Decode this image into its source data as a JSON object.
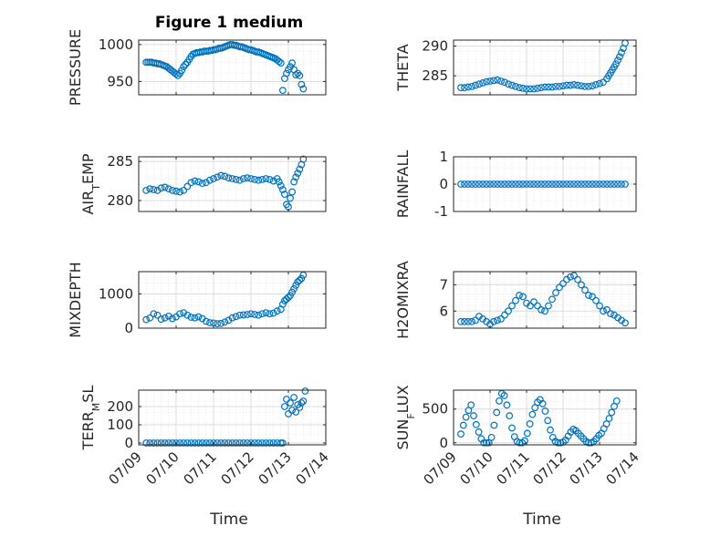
{
  "figure": {
    "title": "Figure 1 medium",
    "xlabel": "Time",
    "x_ticks": [
      "07/09",
      "07/10",
      "07/11",
      "07/12",
      "07/13",
      "07/14"
    ]
  },
  "style": {
    "marker_color": "#0072BD",
    "grid_color": "#d9d9d9",
    "axis_color": "#262626"
  },
  "chart_data": [
    {
      "type": "scatter",
      "title": "Figure 1 medium",
      "ylabel": "PRESSURE",
      "xlim": [
        0,
        5
      ],
      "ylim": [
        932,
        1006
      ],
      "yticks": [
        950,
        1000
      ],
      "x": [
        0.2,
        0.25,
        0.3,
        0.35,
        0.4,
        0.45,
        0.5,
        0.55,
        0.6,
        0.65,
        0.7,
        0.75,
        0.8,
        0.85,
        0.9,
        0.95,
        1.0,
        1.05,
        1.1,
        1.15,
        1.2,
        1.25,
        1.3,
        1.35,
        1.4,
        1.45,
        1.5,
        1.55,
        1.6,
        1.65,
        1.7,
        1.75,
        1.8,
        1.85,
        1.9,
        1.95,
        2.0,
        2.05,
        2.1,
        2.15,
        2.2,
        2.25,
        2.3,
        2.35,
        2.4,
        2.45,
        2.5,
        2.55,
        2.6,
        2.65,
        2.7,
        2.75,
        2.8,
        2.85,
        2.9,
        2.95,
        3.0,
        3.05,
        3.1,
        3.15,
        3.2,
        3.25,
        3.3,
        3.35,
        3.4,
        3.45,
        3.5,
        3.55,
        3.6,
        3.65,
        3.7,
        3.75,
        3.8,
        3.85,
        3.9,
        3.95,
        4.0,
        4.05,
        4.1,
        4.15,
        4.2,
        4.25,
        4.3,
        4.35,
        4.4
      ],
      "y": [
        976,
        976,
        976,
        976,
        975,
        975,
        974,
        974,
        973,
        972,
        971,
        970,
        968,
        966,
        964,
        962,
        960,
        958,
        961,
        965,
        970,
        973,
        976,
        980,
        984,
        987,
        988,
        989,
        989,
        990,
        990,
        991,
        991,
        991,
        992,
        992,
        993,
        993,
        994,
        995,
        995,
        996,
        997,
        998,
        999,
        1000,
        1000,
        999,
        999,
        998,
        997,
        997,
        996,
        995,
        994,
        993,
        993,
        992,
        991,
        990,
        990,
        989,
        988,
        987,
        986,
        985,
        984,
        983,
        982,
        981,
        979,
        977,
        975,
        938,
        954,
        961,
        966,
        970,
        975,
        966,
        959,
        961,
        958,
        946,
        940
      ],
      "series": [
        {
          "name": "",
          "values": []
        }
      ]
    },
    {
      "type": "scatter",
      "ylabel": "THETA",
      "xlim": [
        0,
        5
      ],
      "ylim": [
        281.8,
        291
      ],
      "yticks": [
        285,
        290
      ],
      "x": [
        0.2,
        0.3,
        0.4,
        0.5,
        0.6,
        0.7,
        0.8,
        0.9,
        1.0,
        1.1,
        1.2,
        1.3,
        1.4,
        1.5,
        1.6,
        1.7,
        1.8,
        1.9,
        2.0,
        2.1,
        2.2,
        2.3,
        2.4,
        2.5,
        2.6,
        2.7,
        2.8,
        2.9,
        3.0,
        3.1,
        3.2,
        3.3,
        3.4,
        3.5,
        3.6,
        3.7,
        3.8,
        3.9,
        4.0,
        4.1,
        4.2,
        4.25,
        4.3,
        4.35,
        4.4,
        4.45,
        4.5,
        4.55,
        4.6,
        4.65,
        4.7
      ],
      "y": [
        283,
        283,
        283.1,
        283.2,
        283.4,
        283.6,
        283.8,
        284,
        284.1,
        284.2,
        284.3,
        284.1,
        283.9,
        283.6,
        283.4,
        283.2,
        283,
        282.9,
        282.8,
        282.8,
        282.8,
        282.9,
        283,
        283.1,
        283.1,
        283.1,
        283.2,
        283.2,
        283.3,
        283.4,
        283.4,
        283.5,
        283.4,
        283.3,
        283.2,
        283.2,
        283.3,
        283.5,
        283.7,
        283.9,
        284.5,
        285,
        285.5,
        286,
        286.5,
        287,
        287.6,
        288.2,
        288.9,
        289.6,
        290.5
      ]
    },
    {
      "type": "scatter",
      "ylabel": "AIR_TEMP",
      "xlim": [
        0,
        5
      ],
      "ylim": [
        278.6,
        285.6
      ],
      "yticks": [
        280,
        285
      ],
      "x": [
        0.2,
        0.3,
        0.4,
        0.5,
        0.6,
        0.7,
        0.8,
        0.9,
        1.0,
        1.1,
        1.2,
        1.3,
        1.4,
        1.5,
        1.6,
        1.7,
        1.8,
        1.9,
        2.0,
        2.1,
        2.2,
        2.3,
        2.4,
        2.5,
        2.6,
        2.7,
        2.8,
        2.9,
        3.0,
        3.1,
        3.2,
        3.3,
        3.4,
        3.5,
        3.6,
        3.7,
        3.75,
        3.8,
        3.85,
        3.9,
        3.95,
        4.0,
        4.05,
        4.1,
        4.15,
        4.2,
        4.25,
        4.3,
        4.35,
        4.4
      ],
      "y": [
        281.3,
        281.5,
        281.4,
        281.3,
        281.6,
        281.7,
        281.5,
        281.3,
        281.2,
        281.1,
        281.3,
        281.8,
        282.3,
        282.5,
        282.4,
        282.2,
        282.3,
        282.6,
        282.8,
        283,
        283.2,
        283.1,
        282.9,
        282.8,
        282.7,
        282.6,
        282.8,
        282.9,
        282.8,
        282.7,
        282.6,
        282.7,
        282.8,
        282.7,
        282.5,
        282.8,
        282.4,
        281.9,
        281.4,
        280.8,
        279.5,
        279.2,
        280.3,
        281.1,
        282.4,
        283,
        283.5,
        284,
        284.6,
        285.3
      ]
    },
    {
      "type": "scatter",
      "ylabel": "RAINFALL",
      "xlim": [
        0,
        5
      ],
      "ylim": [
        -1,
        1
      ],
      "yticks": [
        -1,
        0,
        1
      ],
      "x": [
        0.2,
        0.3,
        0.4,
        0.5,
        0.6,
        0.7,
        0.8,
        0.9,
        1.0,
        1.1,
        1.2,
        1.3,
        1.4,
        1.5,
        1.6,
        1.7,
        1.8,
        1.9,
        2.0,
        2.1,
        2.2,
        2.3,
        2.4,
        2.5,
        2.6,
        2.7,
        2.8,
        2.9,
        3.0,
        3.1,
        3.2,
        3.3,
        3.4,
        3.5,
        3.6,
        3.7,
        3.8,
        3.9,
        4.0,
        4.1,
        4.2,
        4.3,
        4.4,
        4.5,
        4.6,
        4.7
      ],
      "y": [
        0,
        0,
        0,
        0,
        0,
        0,
        0,
        0,
        0,
        0,
        0,
        0,
        0,
        0,
        0,
        0,
        0,
        0,
        0,
        0,
        0,
        0,
        0,
        0,
        0,
        0,
        0,
        0,
        0,
        0,
        0,
        0,
        0,
        0,
        0,
        0,
        0,
        0,
        0,
        0,
        0,
        0,
        0,
        0,
        0,
        0
      ]
    },
    {
      "type": "scatter",
      "ylabel": "MIXDEPTH",
      "xlim": [
        0,
        5
      ],
      "ylim": [
        0,
        1650
      ],
      "yticks": [
        0,
        1000
      ],
      "x": [
        0.2,
        0.3,
        0.4,
        0.5,
        0.6,
        0.7,
        0.8,
        0.9,
        1.0,
        1.1,
        1.2,
        1.3,
        1.4,
        1.5,
        1.6,
        1.7,
        1.8,
        1.9,
        2.0,
        2.1,
        2.2,
        2.3,
        2.4,
        2.5,
        2.6,
        2.7,
        2.8,
        2.9,
        3.0,
        3.1,
        3.2,
        3.3,
        3.4,
        3.5,
        3.6,
        3.7,
        3.8,
        3.85,
        3.9,
        3.95,
        4.0,
        4.05,
        4.1,
        4.15,
        4.2,
        4.25,
        4.3,
        4.35,
        4.4
      ],
      "y": [
        250,
        300,
        420,
        380,
        260,
        300,
        350,
        280,
        330,
        420,
        450,
        380,
        320,
        300,
        330,
        280,
        200,
        160,
        150,
        130,
        140,
        180,
        230,
        300,
        340,
        380,
        390,
        400,
        420,
        400,
        380,
        420,
        450,
        420,
        440,
        500,
        550,
        700,
        800,
        850,
        900,
        950,
        1050,
        1150,
        1250,
        1350,
        1400,
        1450,
        1550
      ]
    },
    {
      "type": "scatter",
      "ylabel": "H2OMIXRA",
      "xlim": [
        0,
        5
      ],
      "ylim": [
        5.35,
        7.5
      ],
      "yticks": [
        6,
        7
      ],
      "x": [
        0.2,
        0.3,
        0.4,
        0.5,
        0.6,
        0.7,
        0.8,
        0.9,
        1.0,
        1.1,
        1.2,
        1.3,
        1.4,
        1.5,
        1.6,
        1.7,
        1.8,
        1.9,
        2.0,
        2.1,
        2.2,
        2.3,
        2.4,
        2.5,
        2.6,
        2.7,
        2.8,
        2.9,
        3.0,
        3.1,
        3.2,
        3.3,
        3.4,
        3.5,
        3.6,
        3.7,
        3.8,
        3.9,
        4.0,
        4.1,
        4.2,
        4.3,
        4.4,
        4.5,
        4.6,
        4.7
      ],
      "y": [
        5.6,
        5.6,
        5.6,
        5.6,
        5.65,
        5.8,
        5.7,
        5.6,
        5.5,
        5.6,
        5.65,
        5.7,
        5.85,
        6.0,
        6.2,
        6.4,
        6.6,
        6.55,
        6.3,
        6.2,
        6.35,
        6.2,
        6.05,
        6.0,
        6.2,
        6.45,
        6.7,
        6.9,
        7.05,
        7.2,
        7.3,
        7.35,
        7.2,
        7.0,
        6.8,
        6.6,
        6.55,
        6.4,
        6.2,
        6.0,
        6.05,
        5.9,
        5.85,
        5.75,
        5.65,
        5.55
      ]
    },
    {
      "type": "scatter",
      "ylabel": "TERR_MSL",
      "xlim": [
        0,
        5
      ],
      "ylim": [
        -10,
        290
      ],
      "yticks": [
        0,
        100,
        200
      ],
      "x": [
        0.2,
        0.3,
        0.4,
        0.5,
        0.6,
        0.7,
        0.8,
        0.9,
        1.0,
        1.1,
        1.2,
        1.3,
        1.4,
        1.5,
        1.6,
        1.7,
        1.8,
        1.9,
        2.0,
        2.1,
        2.2,
        2.3,
        2.4,
        2.5,
        2.6,
        2.7,
        2.8,
        2.9,
        3.0,
        3.1,
        3.2,
        3.3,
        3.4,
        3.5,
        3.6,
        3.7,
        3.8,
        3.85,
        3.9,
        3.95,
        4.0,
        4.05,
        4.1,
        4.15,
        4.2,
        4.25,
        4.3,
        4.35,
        4.4,
        4.45
      ],
      "y": [
        0,
        0,
        0,
        0,
        0,
        0,
        0,
        0,
        0,
        0,
        0,
        0,
        0,
        0,
        0,
        0,
        0,
        0,
        0,
        0,
        0,
        0,
        0,
        0,
        0,
        0,
        0,
        0,
        0,
        0,
        0,
        0,
        0,
        0,
        0,
        0,
        0,
        0,
        200,
        240,
        160,
        220,
        180,
        250,
        170,
        210,
        195,
        220,
        230,
        285
      ]
    },
    {
      "type": "scatter",
      "ylabel": "SUN_FLUX",
      "xlim": [
        0,
        5
      ],
      "ylim": [
        -30,
        780
      ],
      "yticks": [
        0,
        500
      ],
      "x": [
        0.2,
        0.27,
        0.34,
        0.41,
        0.48,
        0.55,
        0.62,
        0.69,
        0.76,
        0.83,
        0.9,
        0.97,
        1.04,
        1.11,
        1.18,
        1.25,
        1.32,
        1.39,
        1.46,
        1.53,
        1.6,
        1.67,
        1.74,
        1.81,
        1.88,
        1.95,
        2.02,
        2.09,
        2.16,
        2.23,
        2.3,
        2.37,
        2.44,
        2.51,
        2.58,
        2.65,
        2.72,
        2.79,
        2.86,
        2.93,
        3.0,
        3.07,
        3.14,
        3.21,
        3.28,
        3.35,
        3.42,
        3.49,
        3.56,
        3.63,
        3.7,
        3.77,
        3.84,
        3.91,
        3.98,
        4.05,
        4.12,
        4.19,
        4.26,
        4.33,
        4.4,
        4.47
      ],
      "y": [
        130,
        260,
        380,
        480,
        560,
        400,
        270,
        160,
        60,
        0,
        0,
        0,
        80,
        260,
        450,
        620,
        730,
        700,
        560,
        400,
        220,
        90,
        20,
        0,
        0,
        30,
        140,
        280,
        420,
        520,
        600,
        640,
        580,
        470,
        330,
        190,
        80,
        20,
        0,
        0,
        10,
        40,
        100,
        160,
        200,
        180,
        140,
        100,
        60,
        20,
        0,
        0,
        20,
        60,
        110,
        140,
        210,
        280,
        360,
        450,
        540,
        620
      ]
    }
  ]
}
